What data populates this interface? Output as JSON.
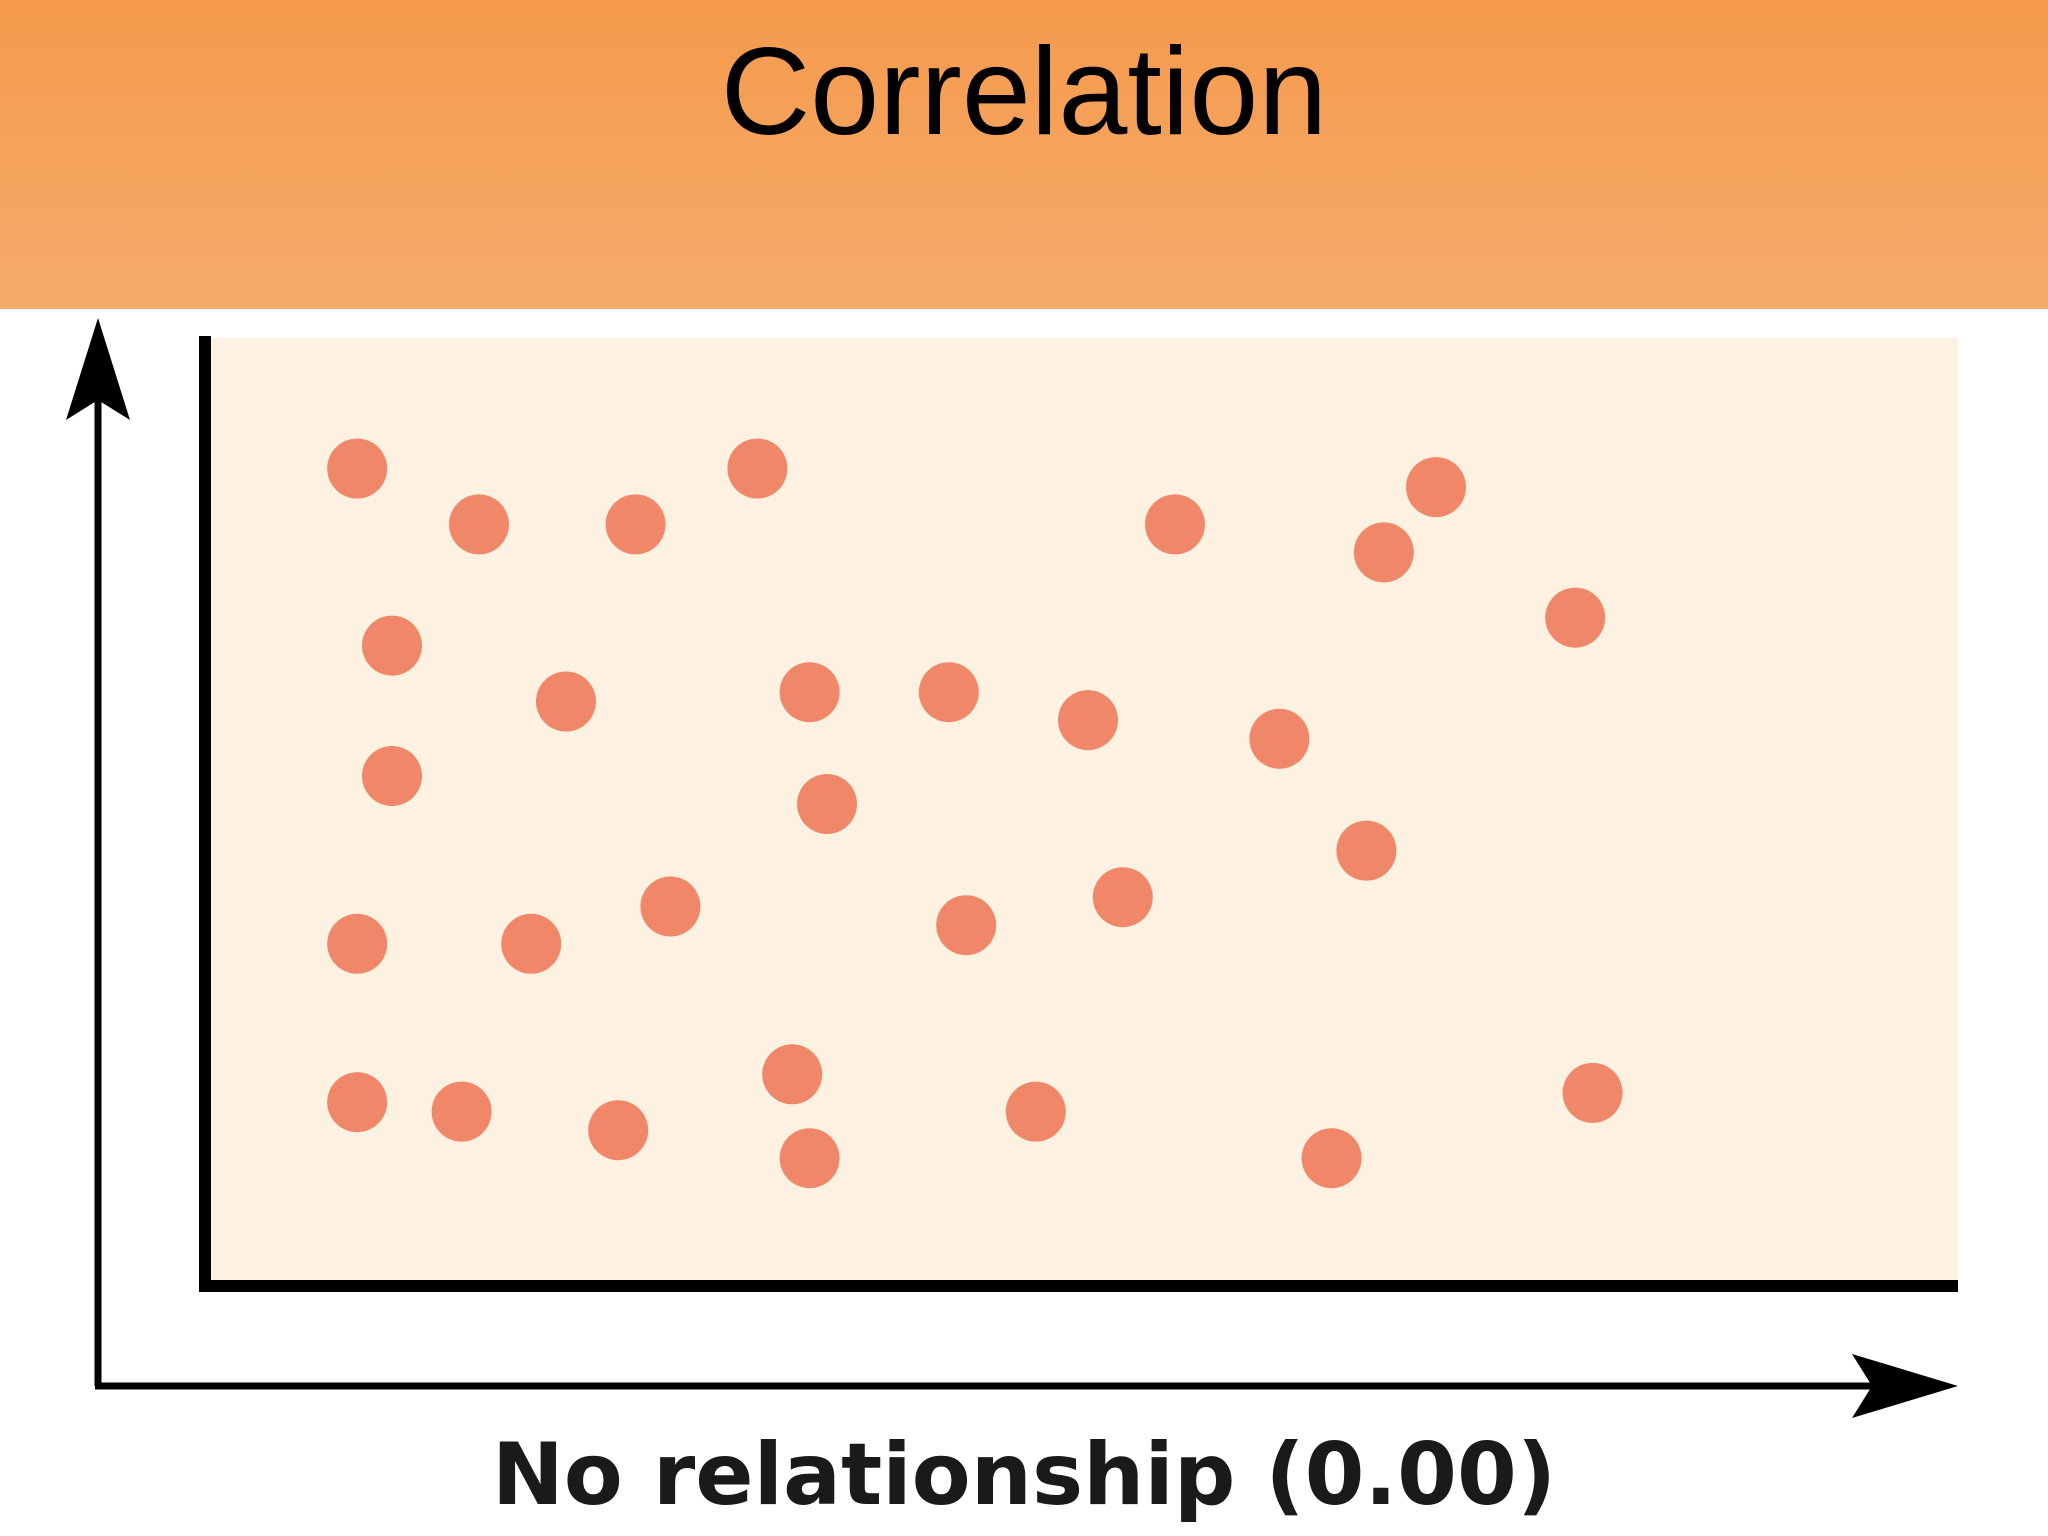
{
  "header": {
    "title": "Correlation"
  },
  "colors": {
    "header_top": "#f59a4c",
    "header_bottom": "#f5ab6c",
    "plot_background": "#fdf1e2",
    "point": "#f08769",
    "axis": "#000000"
  },
  "chart_data": {
    "type": "scatter",
    "title": "",
    "xlabel": "No relationship (0.00)",
    "ylabel": "",
    "xlim": [
      0,
      100
    ],
    "ylim": [
      0,
      100
    ],
    "grid": false,
    "points": [
      {
        "x": 8,
        "y": 86
      },
      {
        "x": 15,
        "y": 80
      },
      {
        "x": 24,
        "y": 80
      },
      {
        "x": 31,
        "y": 86
      },
      {
        "x": 55,
        "y": 80
      },
      {
        "x": 67,
        "y": 77
      },
      {
        "x": 70,
        "y": 84
      },
      {
        "x": 78,
        "y": 70
      },
      {
        "x": 10,
        "y": 67
      },
      {
        "x": 20,
        "y": 61
      },
      {
        "x": 34,
        "y": 62
      },
      {
        "x": 42,
        "y": 62
      },
      {
        "x": 50,
        "y": 59
      },
      {
        "x": 61,
        "y": 57
      },
      {
        "x": 10,
        "y": 53
      },
      {
        "x": 35,
        "y": 50
      },
      {
        "x": 66,
        "y": 45
      },
      {
        "x": 8,
        "y": 35
      },
      {
        "x": 18,
        "y": 35
      },
      {
        "x": 26,
        "y": 39
      },
      {
        "x": 43,
        "y": 37
      },
      {
        "x": 52,
        "y": 40
      },
      {
        "x": 33,
        "y": 21
      },
      {
        "x": 79,
        "y": 19
      },
      {
        "x": 8,
        "y": 18
      },
      {
        "x": 14,
        "y": 17
      },
      {
        "x": 23,
        "y": 15
      },
      {
        "x": 47,
        "y": 17
      },
      {
        "x": 34,
        "y": 12
      },
      {
        "x": 64,
        "y": 12
      }
    ]
  }
}
